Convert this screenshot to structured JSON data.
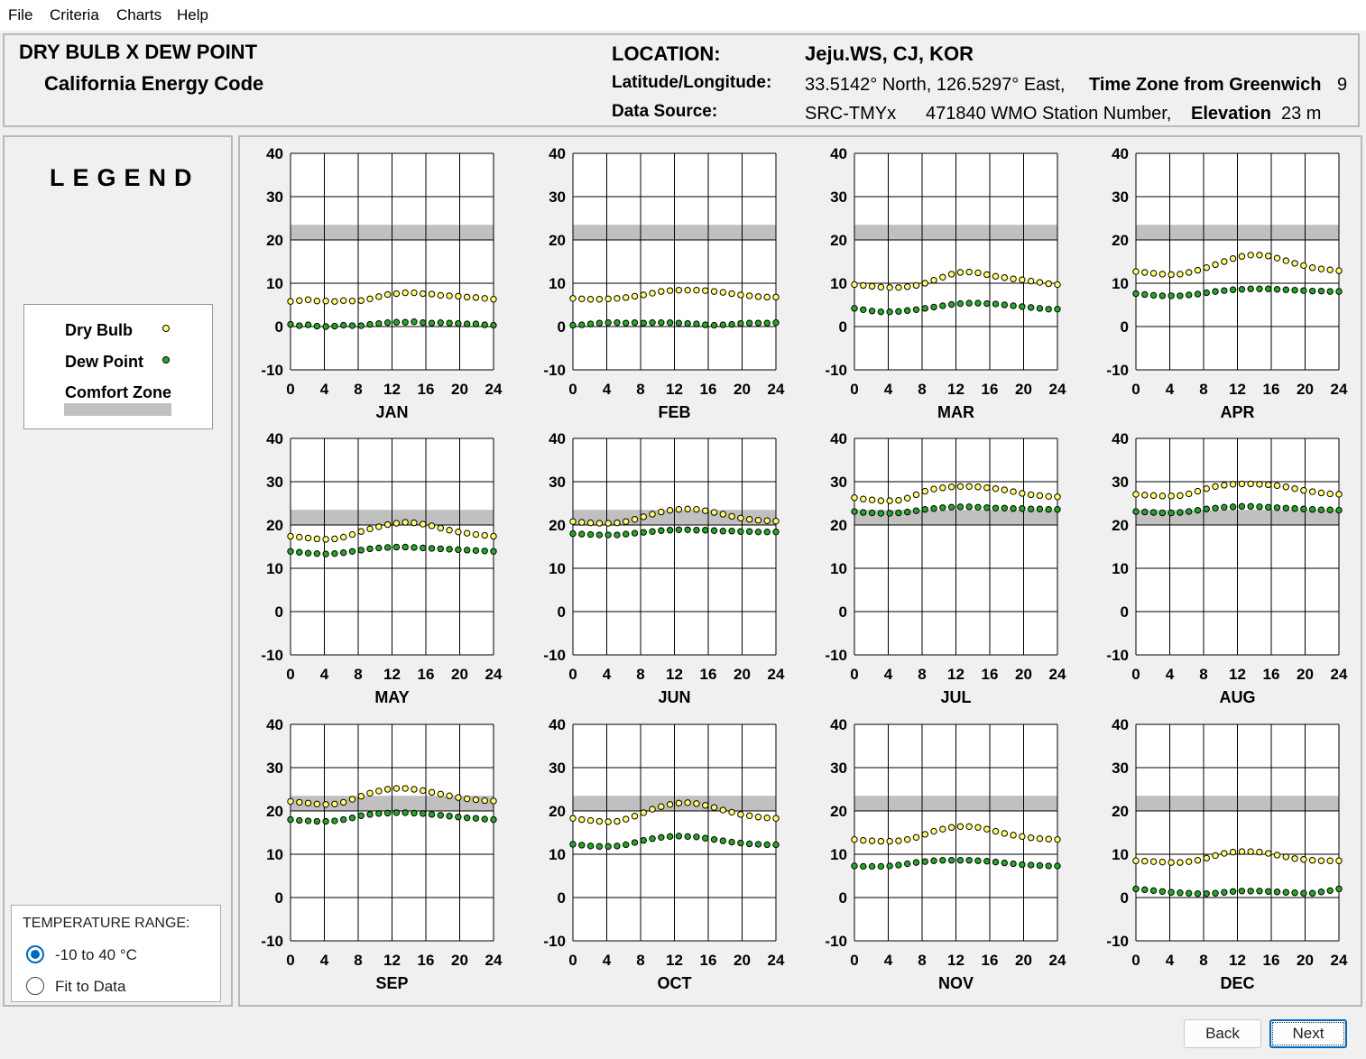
{
  "menu": [
    "File",
    "Criteria",
    "Charts",
    "Help"
  ],
  "header": {
    "title_line1": "DRY BULB  X  DEW POINT",
    "title_line2": "California Energy Code",
    "location_label": "LOCATION:",
    "location_value": "Jeju.WS, CJ, KOR",
    "latlon_label": "Latitude/Longitude:",
    "latlon_value": "33.5142° North, 126.5297° East,",
    "tz_label": "Time Zone from Greenwich",
    "tz_value": "9",
    "source_label": "Data Source:",
    "source_value": "SRC-TMYx",
    "wmo_value": "471840 WMO Station Number,",
    "elev_label": "Elevation",
    "elev_value": "23 m"
  },
  "legend": {
    "title": "LEGEND",
    "dry_bulb": "Dry Bulb",
    "dew_point": "Dew Point",
    "comfort_zone": "Comfort Zone"
  },
  "temp_range": {
    "title": "TEMPERATURE RANGE:",
    "option1": "-10 to 40 °C",
    "option2": "Fit to Data",
    "selected": "option1"
  },
  "buttons": {
    "back": "Back",
    "next": "Next"
  },
  "colors": {
    "dry_bulb": "#ffff66",
    "dew_point": "#22aa22",
    "comfort_zone": "#c0c0c0",
    "marker_edge": "#000000"
  },
  "chart_data": {
    "type": "scatter",
    "x_ticks": [
      0,
      4,
      8,
      12,
      16,
      20,
      24
    ],
    "y_ticks": [
      40,
      30,
      20,
      10,
      0,
      -10
    ],
    "xlim": [
      0,
      24
    ],
    "ylim": [
      -10,
      40
    ],
    "comfort_zone": [
      20,
      23.5
    ],
    "grid": true,
    "panels": [
      {
        "month": "JAN",
        "dry_bulb": [
          5.8,
          6.0,
          6.2,
          5.9,
          5.9,
          5.8,
          6.0,
          5.9,
          6.0,
          6.4,
          6.9,
          7.4,
          7.6,
          7.8,
          7.8,
          7.6,
          7.5,
          7.2,
          7.1,
          7.0,
          6.8,
          6.7,
          6.5,
          6.3
        ],
        "dew_point": [
          0.5,
          0.2,
          0.4,
          0.1,
          0.0,
          0.1,
          0.3,
          0.2,
          0.2,
          0.5,
          0.7,
          0.9,
          1.0,
          1.0,
          1.1,
          0.9,
          0.8,
          0.9,
          0.8,
          0.7,
          0.6,
          0.6,
          0.4,
          0.3
        ]
      },
      {
        "month": "FEB",
        "dry_bulb": [
          6.5,
          6.4,
          6.3,
          6.3,
          6.4,
          6.5,
          6.7,
          7.0,
          7.3,
          7.7,
          8.1,
          8.3,
          8.4,
          8.4,
          8.4,
          8.3,
          8.1,
          7.9,
          7.6,
          7.3,
          7.1,
          6.9,
          6.8,
          6.8
        ],
        "dew_point": [
          0.3,
          0.4,
          0.6,
          0.8,
          0.9,
          0.9,
          0.8,
          0.9,
          0.8,
          0.9,
          0.9,
          0.9,
          0.8,
          0.7,
          0.6,
          0.4,
          0.3,
          0.4,
          0.5,
          0.7,
          0.8,
          0.8,
          0.8,
          0.9
        ]
      },
      {
        "month": "MAR",
        "dry_bulb": [
          9.7,
          9.5,
          9.3,
          9.1,
          9.0,
          9.0,
          9.2,
          9.5,
          10.0,
          10.7,
          11.4,
          12.1,
          12.5,
          12.6,
          12.4,
          12.0,
          11.6,
          11.3,
          11.0,
          10.8,
          10.5,
          10.2,
          9.9,
          9.7
        ],
        "dew_point": [
          4.2,
          3.9,
          3.6,
          3.4,
          3.4,
          3.5,
          3.7,
          3.9,
          4.2,
          4.5,
          4.8,
          5.1,
          5.3,
          5.4,
          5.4,
          5.3,
          5.2,
          5.0,
          4.8,
          4.6,
          4.4,
          4.2,
          4.0,
          4.0
        ]
      },
      {
        "month": "APR",
        "dry_bulb": [
          12.7,
          12.5,
          12.3,
          12.1,
          12.0,
          12.1,
          12.5,
          13.0,
          13.6,
          14.3,
          15.0,
          15.7,
          16.2,
          16.5,
          16.5,
          16.3,
          15.8,
          15.2,
          14.6,
          14.1,
          13.6,
          13.3,
          13.1,
          12.9
        ],
        "dew_point": [
          7.6,
          7.4,
          7.2,
          7.1,
          7.1,
          7.1,
          7.3,
          7.5,
          7.8,
          8.1,
          8.3,
          8.5,
          8.6,
          8.7,
          8.7,
          8.7,
          8.6,
          8.5,
          8.4,
          8.3,
          8.2,
          8.2,
          8.1,
          8.1
        ]
      },
      {
        "month": "MAY",
        "dry_bulb": [
          17.4,
          17.2,
          17.0,
          16.8,
          16.7,
          16.8,
          17.2,
          17.8,
          18.5,
          19.1,
          19.6,
          20.1,
          20.4,
          20.6,
          20.5,
          20.2,
          19.8,
          19.3,
          18.8,
          18.4,
          18.1,
          17.8,
          17.6,
          17.4
        ],
        "dew_point": [
          13.9,
          13.7,
          13.5,
          13.4,
          13.3,
          13.4,
          13.6,
          13.9,
          14.2,
          14.5,
          14.7,
          14.8,
          14.9,
          14.9,
          14.8,
          14.7,
          14.6,
          14.5,
          14.4,
          14.3,
          14.2,
          14.1,
          14.0,
          13.9
        ],
        "dew_point_fix": true
      },
      {
        "month": "JUN",
        "dry_bulb": [
          20.8,
          20.6,
          20.5,
          20.4,
          20.4,
          20.5,
          20.8,
          21.3,
          21.9,
          22.5,
          23.0,
          23.4,
          23.6,
          23.7,
          23.6,
          23.3,
          22.9,
          22.5,
          22.0,
          21.6,
          21.3,
          21.1,
          21.0,
          20.9
        ],
        "dew_point": [
          18.0,
          17.9,
          17.8,
          17.7,
          17.7,
          17.7,
          17.9,
          18.1,
          18.3,
          18.5,
          18.7,
          18.8,
          18.9,
          18.9,
          18.8,
          18.8,
          18.7,
          18.6,
          18.6,
          18.5,
          18.5,
          18.4,
          18.4,
          18.4
        ]
      },
      {
        "month": "JUL",
        "dry_bulb": [
          26.3,
          26.0,
          25.8,
          25.6,
          25.6,
          25.7,
          26.2,
          27.0,
          27.8,
          28.3,
          28.6,
          28.8,
          28.9,
          28.9,
          28.8,
          28.6,
          28.4,
          28.1,
          27.7,
          27.3,
          27.0,
          26.8,
          26.6,
          26.5
        ],
        "dew_point": [
          23.1,
          22.9,
          22.8,
          22.7,
          22.7,
          22.8,
          23.0,
          23.3,
          23.6,
          23.8,
          24.0,
          24.1,
          24.2,
          24.2,
          24.1,
          24.0,
          23.9,
          23.9,
          23.8,
          23.8,
          23.7,
          23.7,
          23.6,
          23.6
        ]
      },
      {
        "month": "AUG",
        "dry_bulb": [
          27.1,
          26.9,
          26.8,
          26.7,
          26.7,
          26.8,
          27.2,
          27.8,
          28.4,
          28.9,
          29.2,
          29.4,
          29.5,
          29.5,
          29.4,
          29.3,
          29.1,
          28.8,
          28.4,
          28.0,
          27.7,
          27.4,
          27.2,
          27.1
        ],
        "dew_point": [
          23.1,
          23.0,
          22.9,
          22.8,
          22.8,
          22.9,
          23.1,
          23.4,
          23.7,
          23.9,
          24.1,
          24.2,
          24.3,
          24.3,
          24.2,
          24.1,
          24.0,
          23.9,
          23.8,
          23.7,
          23.6,
          23.5,
          23.5,
          23.4
        ]
      },
      {
        "month": "SEP",
        "dry_bulb": [
          22.2,
          22.0,
          21.8,
          21.6,
          21.5,
          21.6,
          22.0,
          22.7,
          23.4,
          24.1,
          24.6,
          25.0,
          25.2,
          25.2,
          25.0,
          24.7,
          24.3,
          23.9,
          23.5,
          23.1,
          22.8,
          22.6,
          22.4,
          22.3
        ],
        "dew_point": [
          18.0,
          17.8,
          17.7,
          17.6,
          17.6,
          17.7,
          18.0,
          18.4,
          18.9,
          19.2,
          19.4,
          19.5,
          19.6,
          19.6,
          19.5,
          19.4,
          19.2,
          19.0,
          18.8,
          18.6,
          18.4,
          18.3,
          18.1,
          18.0
        ]
      },
      {
        "month": "OCT",
        "dry_bulb": [
          18.3,
          18.0,
          17.8,
          17.6,
          17.5,
          17.6,
          18.1,
          18.8,
          19.6,
          20.4,
          21.0,
          21.5,
          21.8,
          21.9,
          21.7,
          21.3,
          20.8,
          20.2,
          19.7,
          19.2,
          18.9,
          18.6,
          18.4,
          18.3
        ],
        "dew_point": [
          12.3,
          12.1,
          11.9,
          11.8,
          11.8,
          11.9,
          12.2,
          12.7,
          13.2,
          13.6,
          13.9,
          14.1,
          14.2,
          14.1,
          14.0,
          13.7,
          13.4,
          13.1,
          12.8,
          12.6,
          12.4,
          12.3,
          12.2,
          12.2
        ]
      },
      {
        "month": "NOV",
        "dry_bulb": [
          13.4,
          13.2,
          13.1,
          13.0,
          13.0,
          13.1,
          13.4,
          13.9,
          14.6,
          15.3,
          15.8,
          16.2,
          16.4,
          16.4,
          16.2,
          15.8,
          15.3,
          14.8,
          14.4,
          14.1,
          13.8,
          13.6,
          13.5,
          13.4
        ],
        "dew_point": [
          7.3,
          7.2,
          7.2,
          7.2,
          7.3,
          7.5,
          7.8,
          8.1,
          8.3,
          8.5,
          8.6,
          8.6,
          8.6,
          8.6,
          8.5,
          8.4,
          8.2,
          8.0,
          7.8,
          7.6,
          7.5,
          7.4,
          7.3,
          7.3
        ]
      },
      {
        "month": "DEC",
        "dry_bulb": [
          8.5,
          8.4,
          8.3,
          8.2,
          8.1,
          8.1,
          8.3,
          8.6,
          9.1,
          9.7,
          10.2,
          10.5,
          10.6,
          10.6,
          10.5,
          10.2,
          9.8,
          9.4,
          9.0,
          8.8,
          8.6,
          8.5,
          8.5,
          8.5
        ],
        "dew_point": [
          2.0,
          1.8,
          1.6,
          1.4,
          1.2,
          1.1,
          1.0,
          0.9,
          0.9,
          1.0,
          1.2,
          1.4,
          1.5,
          1.5,
          1.5,
          1.4,
          1.3,
          1.2,
          1.1,
          1.0,
          1.0,
          1.3,
          1.6,
          2.0
        ]
      }
    ]
  }
}
